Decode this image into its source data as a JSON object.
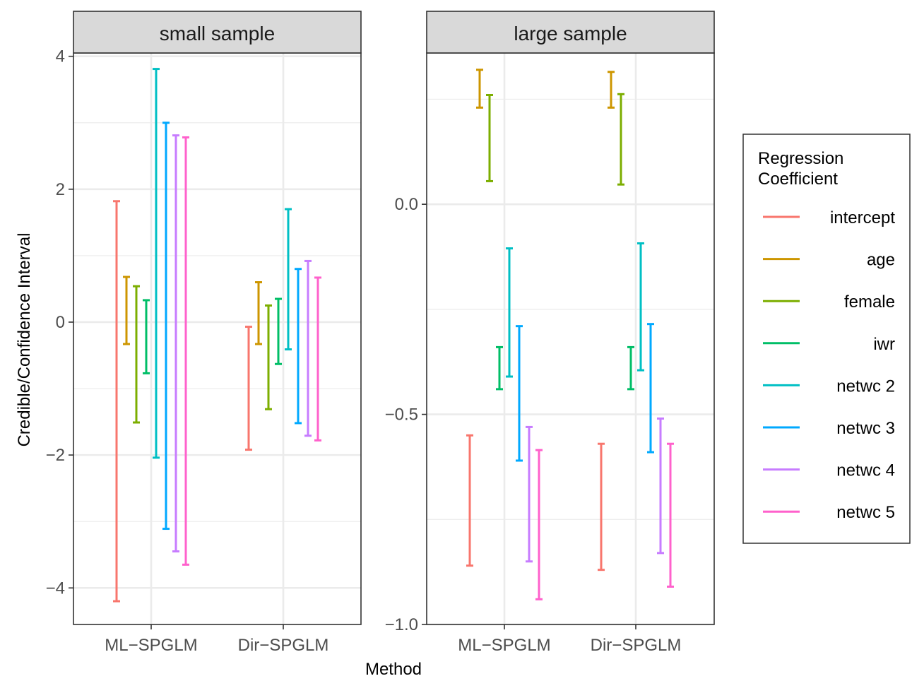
{
  "chart_data": {
    "type": "errorbar",
    "xlabel": "Method",
    "ylabel": "Credible/Confidence Interval",
    "categories": [
      "ML−SPGLM",
      "Dir−SPGLM"
    ],
    "legend": {
      "title_lines": [
        "Regression",
        "Coefficient"
      ],
      "placement": "right",
      "entries": [
        {
          "label": "intercept",
          "color": "#F8766D"
        },
        {
          "label": "age",
          "color": "#CD9600"
        },
        {
          "label": "female",
          "color": "#7CAE00"
        },
        {
          "label": "iwr",
          "color": "#00BE67"
        },
        {
          "label": "netwc 2",
          "color": "#00BFC4"
        },
        {
          "label": "netwc 3",
          "color": "#00A9FF"
        },
        {
          "label": "netwc 4",
          "color": "#C77CFF"
        },
        {
          "label": "netwc 5",
          "color": "#FF61CC"
        }
      ]
    },
    "panels": [
      {
        "title": "small sample",
        "ylim": [
          -4.55,
          4.05
        ],
        "yticks": [
          -4,
          -2,
          0,
          2,
          4
        ],
        "ytick_labels": [
          "−4",
          "−2",
          "0",
          "2",
          "4"
        ],
        "minor_yticks": [
          -3,
          -1,
          1,
          3
        ],
        "series": [
          {
            "name": "intercept",
            "intervals": [
              [
                -4.2,
                1.82
              ],
              [
                -1.92,
                -0.07
              ]
            ]
          },
          {
            "name": "age",
            "intervals": [
              [
                -0.33,
                0.68
              ],
              [
                -0.33,
                0.6
              ]
            ]
          },
          {
            "name": "female",
            "intervals": [
              [
                -1.51,
                0.54
              ],
              [
                -1.31,
                0.25
              ]
            ]
          },
          {
            "name": "iwr",
            "intervals": [
              [
                -0.77,
                0.33
              ],
              [
                -0.63,
                0.35
              ]
            ]
          },
          {
            "name": "netwc 2",
            "intervals": [
              [
                -2.04,
                3.81
              ],
              [
                -0.41,
                1.7
              ]
            ]
          },
          {
            "name": "netwc 3",
            "intervals": [
              [
                -3.11,
                3.0
              ],
              [
                -1.52,
                0.8
              ]
            ]
          },
          {
            "name": "netwc 4",
            "intervals": [
              [
                -3.45,
                2.81
              ],
              [
                -1.71,
                0.92
              ]
            ]
          },
          {
            "name": "netwc 5",
            "intervals": [
              [
                -3.65,
                2.78
              ],
              [
                -1.78,
                0.67
              ]
            ]
          }
        ]
      },
      {
        "title": "large sample",
        "ylim": [
          -1.0,
          0.36
        ],
        "yticks": [
          -1.0,
          -0.5,
          0.0
        ],
        "ytick_labels": [
          "−1.0",
          "−0.5",
          "0.0"
        ],
        "minor_yticks": [
          -0.75,
          -0.25,
          0.25
        ],
        "series": [
          {
            "name": "intercept",
            "intervals": [
              [
                -0.86,
                -0.55
              ],
              [
                -0.87,
                -0.57
              ]
            ]
          },
          {
            "name": "age",
            "intervals": [
              [
                0.23,
                0.32
              ],
              [
                0.23,
                0.315
              ]
            ]
          },
          {
            "name": "female",
            "intervals": [
              [
                0.055,
                0.26
              ],
              [
                0.047,
                0.262
              ]
            ]
          },
          {
            "name": "iwr",
            "intervals": [
              [
                -0.44,
                -0.34
              ],
              [
                -0.44,
                -0.34
              ]
            ]
          },
          {
            "name": "netwc 2",
            "intervals": [
              [
                -0.41,
                -0.105
              ],
              [
                -0.395,
                -0.093
              ]
            ]
          },
          {
            "name": "netwc 3",
            "intervals": [
              [
                -0.61,
                -0.29
              ],
              [
                -0.59,
                -0.285
              ]
            ]
          },
          {
            "name": "netwc 4",
            "intervals": [
              [
                -0.85,
                -0.53
              ],
              [
                -0.83,
                -0.51
              ]
            ]
          },
          {
            "name": "netwc 5",
            "intervals": [
              [
                -0.94,
                -0.585
              ],
              [
                -0.91,
                -0.57
              ]
            ]
          }
        ]
      }
    ]
  }
}
